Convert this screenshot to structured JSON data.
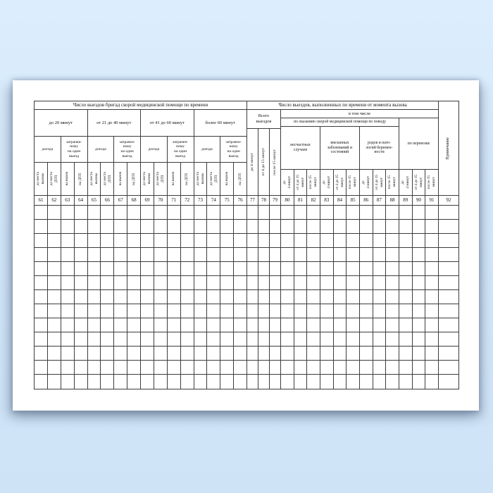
{
  "background": {
    "top_color": "#dceefd",
    "bottom_color": "#cfe3f7"
  },
  "paper": {
    "color": "#ffffff"
  },
  "table": {
    "line_color": "#3c3c3c",
    "left_title": "Число выездов бригад скорой медицинской помощи по времени",
    "right_title": "Число выездов, выполненных по времени  от момента вызова",
    "time_brackets": [
      "до 20 минут",
      "от 21 до 40 минут",
      "от 41 до 60 минут",
      "более 60 минут"
    ],
    "sub_headers": {
      "travel": "доезда",
      "spent": "затрачен-\nному\nна один\nвыезд"
    },
    "left_rotated": [
      "до места\nвызова",
      "до места\nДТП",
      "на вызов",
      "на ДТП"
    ],
    "total_group": {
      "title": "Всего\nвыездов",
      "columns": [
        "до 4 минут",
        "от 4 до 15 минут",
        "после 15 минут"
      ]
    },
    "including_label": "в том числе",
    "care_label": "по оказанию скорой медицинской помощи по поводу",
    "cause_groups": [
      "несчастных\nслучаев",
      "внезапных\nзаболеваний и\nсостояний",
      "родов и пато-\nлогий беремен-\nности"
    ],
    "transport_label": "по перевозке",
    "note_label": "Примечание",
    "interval_columns": [
      "до\n4 минут",
      "от 4 до 15\nминут",
      "после 15\nминут"
    ],
    "column_numbers": [
      61,
      62,
      63,
      64,
      65,
      66,
      67,
      68,
      69,
      70,
      71,
      72,
      73,
      74,
      75,
      76,
      77,
      78,
      79,
      80,
      81,
      82,
      83,
      84,
      85,
      86,
      87,
      88,
      89,
      90,
      91,
      92
    ],
    "data_row_count": 13
  }
}
